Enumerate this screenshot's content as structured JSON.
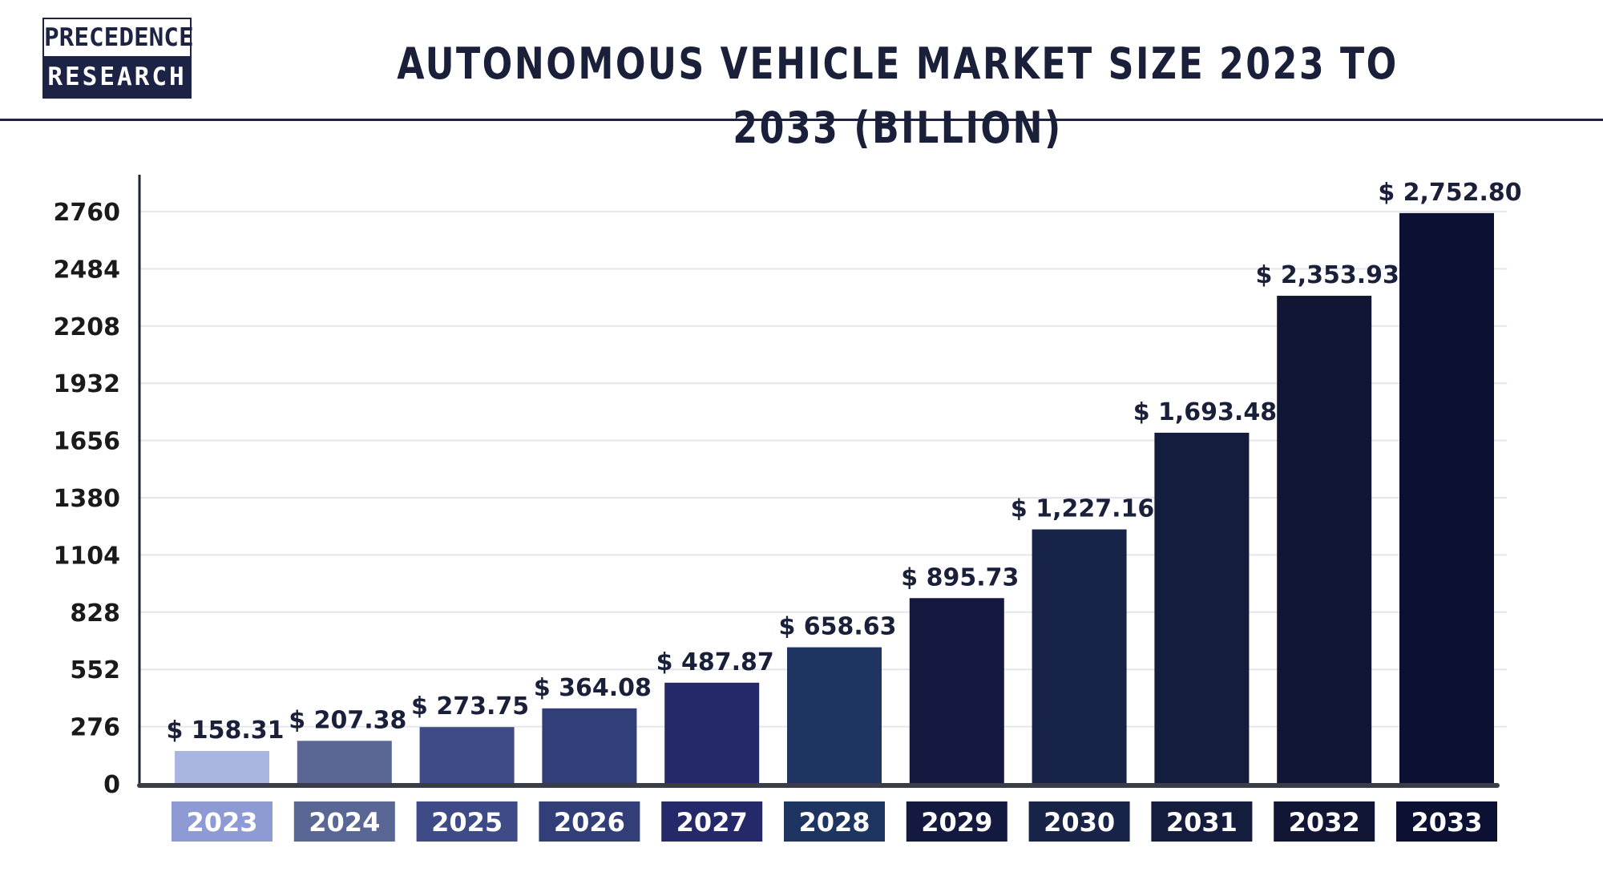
{
  "header": {
    "logo_top": "PRECEDENCE",
    "logo_bottom": "RESEARCH",
    "title": "AUTONOMOUS VEHICLE MARKET SIZE 2023 TO 2033 (BILLION)"
  },
  "chart_data": {
    "type": "bar",
    "title": "AUTONOMOUS VEHICLE MARKET SIZE 2023 TO 2033 (BILLION)",
    "xlabel": "",
    "ylabel": "",
    "categories": [
      "2023",
      "2024",
      "2025",
      "2026",
      "2027",
      "2028",
      "2029",
      "2030",
      "2031",
      "2032",
      "2033"
    ],
    "values": [
      158.31,
      207.38,
      273.75,
      364.08,
      487.87,
      658.63,
      895.73,
      1227.16,
      1693.48,
      2353.93,
      2752.8
    ],
    "value_labels": [
      "$ 158.31",
      "$ 207.38",
      "$ 273.75",
      "$ 364.08",
      "$ 487.87",
      "$ 658.63",
      "$ 895.73",
      "$ 1,227.16",
      "$ 1,693.48",
      "$ 2,353.93",
      "$ 2,752.80"
    ],
    "yticks": [
      0,
      276,
      552,
      828,
      1104,
      1380,
      1656,
      1932,
      2208,
      2484,
      2760
    ],
    "ylim": [
      0,
      2760
    ],
    "grid": true,
    "legend": "none",
    "bar_colors": [
      "#aab6df",
      "#5a6795",
      "#3e4b86",
      "#323e78",
      "#25296a",
      "#1e3562",
      "#141a3f",
      "#182447",
      "#151d3e",
      "#101633",
      "#0c1133"
    ],
    "label_box_colors": [
      "#8d9ad4",
      "#5a6795",
      "#3e4b86",
      "#323e78",
      "#25296a",
      "#1e3562",
      "#141a3f",
      "#182447",
      "#151d3e",
      "#101633",
      "#0c1133"
    ]
  }
}
